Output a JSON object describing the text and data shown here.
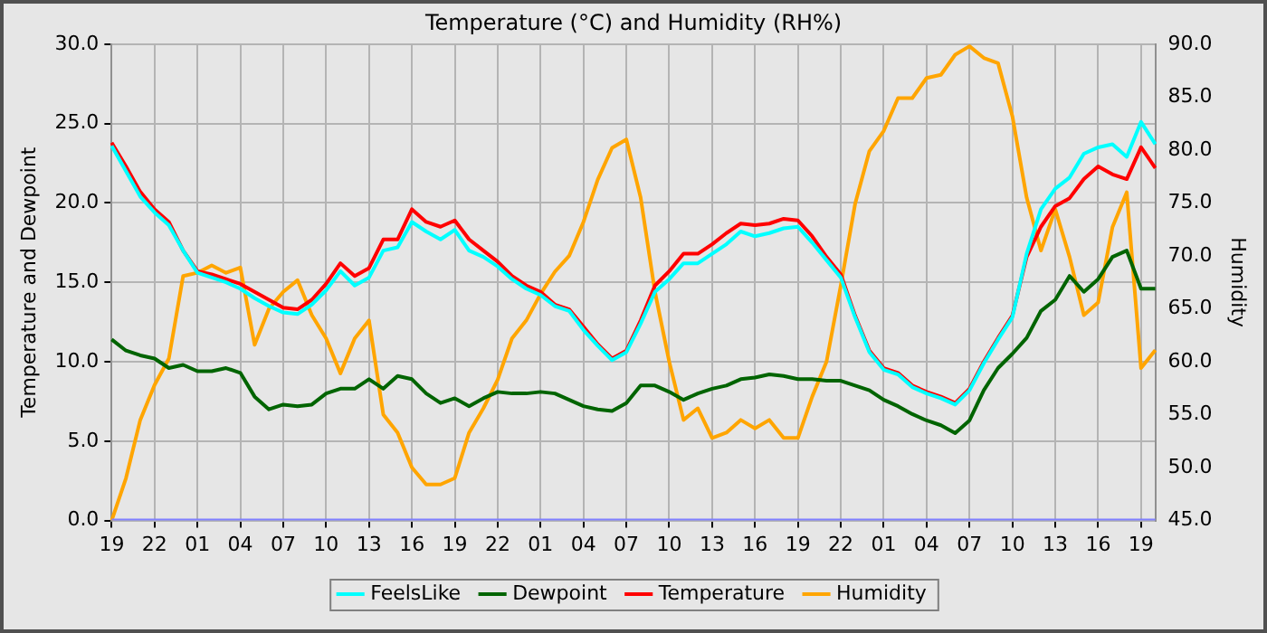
{
  "chart_data": {
    "type": "line",
    "title": "Temperature (°C) and Humidity (RH%)",
    "ylabel": "Temperature and Dewpoint",
    "y2label": "Humidity",
    "categories": [
      "19",
      null,
      null,
      "22",
      null,
      null,
      "01",
      null,
      null,
      "04",
      null,
      null,
      "07",
      null,
      null,
      "10",
      null,
      null,
      "13",
      null,
      null,
      "16",
      null,
      null,
      "19",
      null,
      null,
      "22",
      null,
      null,
      "01",
      null,
      null,
      "04",
      null,
      null,
      "07",
      null,
      null,
      "10",
      null,
      null,
      "13",
      null,
      null,
      "16",
      null,
      null,
      "19",
      null,
      null,
      "22",
      null,
      null,
      "01",
      null,
      null,
      "04",
      null,
      null,
      "07",
      null,
      null,
      "10",
      null,
      null,
      "13",
      null,
      null,
      "16",
      null,
      null,
      "19",
      null
    ],
    "series": [
      {
        "color": "#8080ff",
        "values": [
          0,
          0,
          0,
          0,
          0,
          0,
          0,
          0,
          0,
          0,
          0,
          0,
          0,
          0,
          0,
          0,
          0,
          0,
          0,
          0,
          0,
          0,
          0,
          0,
          0,
          0,
          0,
          0,
          0,
          0,
          0,
          0,
          0,
          0,
          0,
          0,
          0,
          0,
          0,
          0,
          0,
          0,
          0,
          0,
          0,
          0,
          0,
          0,
          0,
          0,
          0,
          0,
          0,
          0,
          0,
          0,
          0,
          0,
          0,
          0,
          0,
          0,
          0,
          0,
          0,
          0,
          0,
          0,
          0,
          0,
          0,
          0,
          0,
          0
        ]
      },
      {
        "name": "FeelsLike",
        "color": "#00ffff",
        "values": [
          23.6,
          22.0,
          20.4,
          19.4,
          18.6,
          17.0,
          15.6,
          15.3,
          15.0,
          14.6,
          14.0,
          13.5,
          13.1,
          13.0,
          13.6,
          14.5,
          15.7,
          14.8,
          15.3,
          17.0,
          17.2,
          18.8,
          18.2,
          17.7,
          18.3,
          17.0,
          16.6,
          16.0,
          15.2,
          14.6,
          14.2,
          13.5,
          13.2,
          12.0,
          11.0,
          10.1,
          10.6,
          12.4,
          14.4,
          15.2,
          16.2,
          16.2,
          16.8,
          17.4,
          18.2,
          17.9,
          18.1,
          18.4,
          18.5,
          17.5,
          16.4,
          15.3,
          12.8,
          10.6,
          9.5,
          9.2,
          8.4,
          8.0,
          7.7,
          7.3,
          8.2,
          9.9,
          11.4,
          12.8,
          16.8,
          19.6,
          20.9,
          21.6,
          23.1,
          23.5,
          23.7,
          22.9,
          25.1,
          23.7
        ]
      },
      {
        "name": "Dewpoint",
        "color": "#006400",
        "values": [
          11.4,
          10.7,
          10.4,
          10.2,
          9.6,
          9.8,
          9.4,
          9.4,
          9.6,
          9.3,
          7.8,
          7.0,
          7.3,
          7.2,
          7.3,
          8.0,
          8.3,
          8.3,
          8.9,
          8.3,
          9.1,
          8.9,
          8.0,
          7.4,
          7.7,
          7.2,
          7.7,
          8.1,
          8.0,
          8.0,
          8.1,
          8.0,
          7.6,
          7.2,
          7.0,
          6.9,
          7.4,
          8.5,
          8.5,
          8.1,
          7.6,
          8.0,
          8.3,
          8.5,
          8.9,
          9.0,
          9.2,
          9.1,
          8.9,
          8.9,
          8.8,
          8.8,
          8.5,
          8.2,
          7.6,
          7.2,
          6.7,
          6.3,
          6.0,
          5.5,
          6.3,
          8.2,
          9.6,
          10.5,
          11.5,
          13.2,
          13.9,
          15.4,
          14.4,
          15.2,
          16.6,
          17.0,
          14.6,
          14.6
        ]
      },
      {
        "name": "Temperature",
        "color": "#ff0000",
        "values": [
          23.8,
          22.3,
          20.7,
          19.6,
          18.8,
          17.0,
          15.7,
          15.5,
          15.2,
          14.9,
          14.4,
          13.9,
          13.4,
          13.3,
          13.9,
          14.9,
          16.2,
          15.4,
          15.9,
          17.7,
          17.7,
          19.6,
          18.8,
          18.5,
          18.9,
          17.7,
          17.0,
          16.3,
          15.4,
          14.8,
          14.4,
          13.6,
          13.3,
          12.2,
          11.1,
          10.2,
          10.7,
          12.6,
          14.8,
          15.7,
          16.8,
          16.8,
          17.4,
          18.1,
          18.7,
          18.6,
          18.7,
          19.0,
          18.9,
          17.9,
          16.6,
          15.5,
          12.9,
          10.7,
          9.6,
          9.3,
          8.5,
          8.1,
          7.8,
          7.4,
          8.3,
          10.0,
          11.5,
          12.9,
          16.6,
          18.5,
          19.8,
          20.3,
          21.5,
          22.3,
          21.8,
          21.5,
          23.5,
          22.2
        ]
      },
      {
        "name": "Humidity",
        "color": "#ffa500",
        "axis": "y2",
        "values": [
          45.0,
          49.0,
          54.5,
          57.8,
          60.3,
          68.1,
          68.4,
          69.1,
          68.4,
          68.9,
          61.6,
          65.0,
          66.6,
          67.7,
          64.4,
          62.2,
          58.9,
          62.2,
          63.9,
          55.0,
          53.3,
          50.0,
          48.4,
          48.4,
          49.0,
          53.3,
          55.6,
          58.3,
          62.2,
          63.9,
          66.4,
          68.5,
          70.0,
          73.2,
          77.2,
          80.2,
          81.0,
          75.5,
          66.6,
          60.0,
          54.5,
          55.6,
          52.8,
          53.3,
          54.5,
          53.7,
          54.5,
          52.8,
          52.8,
          56.7,
          60.0,
          67.2,
          74.9,
          79.9,
          81.8,
          84.9,
          84.9,
          86.8,
          87.1,
          89.0,
          89.8,
          88.7,
          88.2,
          83.2,
          75.5,
          70.5,
          74.4,
          69.9,
          64.4,
          65.6,
          72.7,
          76.0,
          59.4,
          61.1
        ]
      }
    ],
    "ylim": [
      0,
      30
    ],
    "yticks": [
      {
        "value": 0,
        "label": "0.0"
      },
      {
        "value": 5,
        "label": "5.0"
      },
      {
        "value": 10,
        "label": "10.0"
      },
      {
        "value": 15,
        "label": "15.0"
      },
      {
        "value": 20,
        "label": "20.0"
      },
      {
        "value": 25,
        "label": "25.0"
      },
      {
        "value": 30,
        "label": "30.0"
      }
    ],
    "y2lim": [
      45,
      90
    ],
    "y2ticks": [
      {
        "value": 45,
        "label": "45.0"
      },
      {
        "value": 50,
        "label": "50.0"
      },
      {
        "value": 55,
        "label": "55.0"
      },
      {
        "value": 60,
        "label": "60.0"
      },
      {
        "value": 65,
        "label": "65.0"
      },
      {
        "value": 70,
        "label": "70.0"
      },
      {
        "value": 75,
        "label": "75.0"
      },
      {
        "value": 80,
        "label": "80.0"
      },
      {
        "value": 85,
        "label": "85.0"
      },
      {
        "value": 90,
        "label": "90.0"
      }
    ],
    "grid": true,
    "legend": "bottom",
    "marker": "none",
    "line_style": "solid"
  }
}
